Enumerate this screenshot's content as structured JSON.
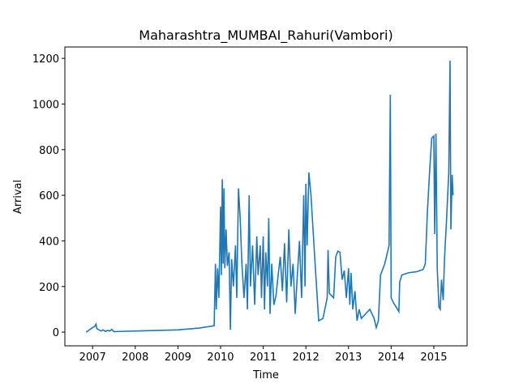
{
  "chart_data": {
    "type": "line",
    "title": "Maharashtra_MUMBAI_Rahuri(Vambori)",
    "xlabel": "Time",
    "ylabel": "Arrival",
    "series": [
      {
        "color": "#1f77b4",
        "x": [
          2006.85,
          2007.0,
          2007.05,
          2007.08,
          2007.1,
          2007.15,
          2007.2,
          2007.25,
          2007.3,
          2007.35,
          2007.4,
          2007.45,
          2007.5,
          2007.6,
          2008.0,
          2009.0,
          2009.5,
          2009.85,
          2009.88,
          2009.9,
          2009.93,
          2009.96,
          2010.0,
          2010.02,
          2010.04,
          2010.06,
          2010.08,
          2010.1,
          2010.13,
          2010.16,
          2010.2,
          2010.23,
          2010.26,
          2010.3,
          2010.35,
          2010.38,
          2010.42,
          2010.46,
          2010.5,
          2010.55,
          2010.6,
          2010.63,
          2010.67,
          2010.7,
          2010.75,
          2010.8,
          2010.85,
          2010.88,
          2010.93,
          2010.96,
          2011.0,
          2011.03,
          2011.06,
          2011.1,
          2011.13,
          2011.16,
          2011.2,
          2011.25,
          2011.3,
          2011.35,
          2011.4,
          2011.45,
          2011.5,
          2011.55,
          2011.6,
          2011.65,
          2011.7,
          2011.75,
          2011.8,
          2011.85,
          2011.9,
          2011.95,
          2011.98,
          2012.0,
          2012.03,
          2012.07,
          2012.12,
          2012.2,
          2012.3,
          2012.4,
          2012.5,
          2012.52,
          2012.55,
          2012.65,
          2012.7,
          2012.75,
          2012.8,
          2012.85,
          2012.9,
          2012.95,
          2013.0,
          2013.03,
          2013.06,
          2013.1,
          2013.15,
          2013.2,
          2013.25,
          2013.3,
          2013.4,
          2013.5,
          2013.6,
          2013.65,
          2013.7,
          2013.75,
          2013.85,
          2013.95,
          2013.98,
          2014.0,
          2014.05,
          2014.15,
          2014.18,
          2014.2,
          2014.25,
          2014.4,
          2014.6,
          2014.75,
          2014.8,
          2014.85,
          2014.9,
          2014.95,
          2015.0,
          2015.02,
          2015.05,
          2015.08,
          2015.12,
          2015.15,
          2015.18,
          2015.22,
          2015.25,
          2015.3,
          2015.35,
          2015.38,
          2015.4,
          2015.43,
          2015.45
        ],
        "values": [
          0,
          20,
          25,
          35,
          15,
          10,
          5,
          10,
          3,
          8,
          5,
          12,
          2,
          3,
          5,
          10,
          18,
          28,
          300,
          100,
          280,
          150,
          550,
          250,
          670,
          300,
          630,
          280,
          450,
          290,
          350,
          10,
          320,
          200,
          380,
          150,
          630,
          500,
          300,
          150,
          300,
          100,
          600,
          200,
          380,
          120,
          420,
          250,
          380,
          150,
          420,
          100,
          350,
          200,
          500,
          80,
          300,
          120,
          160,
          250,
          330,
          180,
          390,
          130,
          450,
          200,
          300,
          80,
          250,
          400,
          150,
          600,
          200,
          650,
          380,
          700,
          600,
          350,
          50,
          60,
          150,
          360,
          170,
          150,
          330,
          355,
          350,
          230,
          270,
          150,
          280,
          120,
          260,
          100,
          180,
          50,
          100,
          60,
          80,
          100,
          60,
          20,
          50,
          250,
          300,
          380,
          1040,
          150,
          130,
          100,
          90,
          220,
          250,
          260,
          265,
          275,
          300,
          530,
          700,
          850,
          860,
          430,
          870,
          280,
          110,
          100,
          230,
          140,
          320,
          500,
          700,
          1190,
          450,
          690,
          600
        ]
      }
    ],
    "xlim": [
      2006.35,
      2015.78
    ],
    "xticks": [
      2007,
      2008,
      2009,
      2010,
      2011,
      2012,
      2013,
      2014,
      2015
    ],
    "ylim": [
      -60,
      1250
    ],
    "yticks": [
      0,
      200,
      400,
      600,
      800,
      1000,
      1200
    ]
  }
}
